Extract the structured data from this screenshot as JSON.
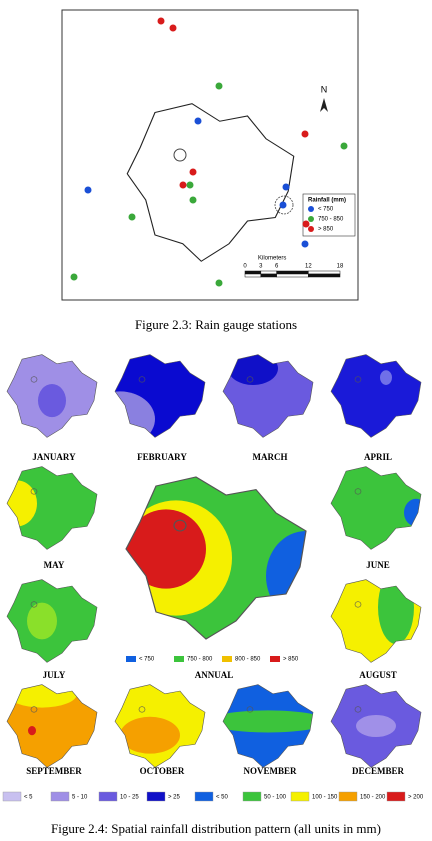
{
  "figure_2_3": {
    "north": "N",
    "legend": {
      "title": "Rainfall (mm)",
      "items": [
        "< 750",
        "750 - 850",
        "> 850"
      ]
    },
    "scale": {
      "label": "Kilometers",
      "ticks": [
        0,
        3,
        6,
        12,
        18
      ]
    },
    "caption": "Figure 2.3: Rain gauge stations"
  },
  "figure_2_4": {
    "months": [
      "JANUARY",
      "FEBRUARY",
      "MARCH",
      "APRIL",
      "MAY",
      "JUNE",
      "JULY",
      "AUGUST",
      "SEPTEMBER",
      "OCTOBER",
      "NOVEMBER",
      "DECEMBER"
    ],
    "annual": {
      "label": "ANNUAL",
      "legend": [
        "< 750",
        "750 - 800",
        "800 - 850",
        "> 850"
      ]
    },
    "legend": [
      "< 5",
      "5 - 10",
      "10 - 25",
      "> 25",
      "< 50",
      "50 - 100",
      "100 - 150",
      "150 - 200",
      "> 200"
    ],
    "caption": "Figure 2.4: Spatial rainfall distribution pattern (all units in mm)"
  }
}
